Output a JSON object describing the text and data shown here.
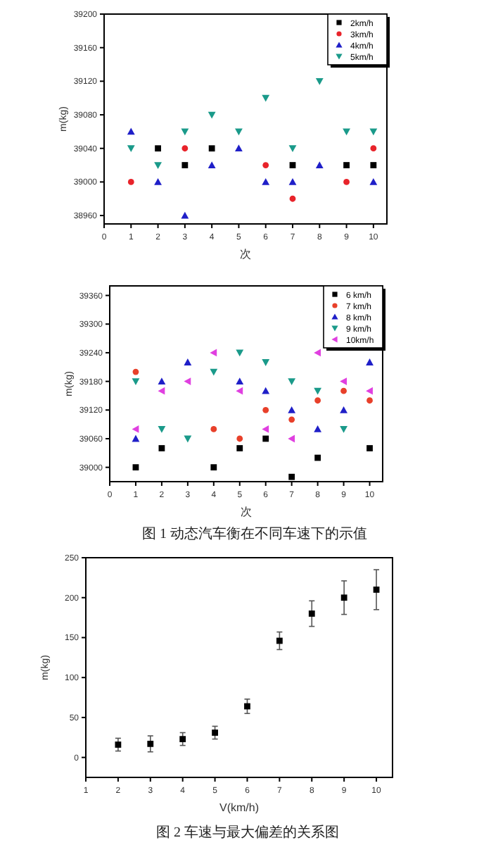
{
  "chart_data": [
    {
      "type": "scatter",
      "xlabel": "次",
      "ylabel": "m(kg)",
      "x": [
        1,
        2,
        3,
        4,
        5,
        6,
        7,
        8,
        9,
        10
      ],
      "xlim": [
        0,
        10.5
      ],
      "xticks": [
        0,
        1,
        2,
        3,
        4,
        5,
        6,
        7,
        8,
        9,
        10
      ],
      "ylim": [
        38950,
        39200
      ],
      "yticks": [
        38960,
        39000,
        39040,
        39080,
        39120,
        39160,
        39200
      ],
      "legend": "top right",
      "series": [
        {
          "name": "2km/h",
          "color": "#000000",
          "marker": "square",
          "values": [
            null,
            39040,
            39020,
            39040,
            null,
            null,
            39020,
            null,
            39020,
            39020
          ]
        },
        {
          "name": "3km/h",
          "color": "#e8232a",
          "marker": "circle",
          "values": [
            39000,
            null,
            39040,
            null,
            null,
            39020,
            38980,
            null,
            39000,
            39040
          ]
        },
        {
          "name": "4km/h",
          "color": "#1f1fc8",
          "marker": "triangle",
          "values": [
            39060,
            39000,
            38960,
            39020,
            39040,
            39000,
            39000,
            39020,
            null,
            39000
          ]
        },
        {
          "name": "5km/h",
          "color": "#1a9a8a",
          "marker": "triangle-down",
          "values": [
            39040,
            39020,
            39060,
            39080,
            39060,
            39100,
            39040,
            39120,
            39060,
            39060
          ]
        }
      ]
    },
    {
      "type": "scatter",
      "xlabel": "次",
      "ylabel": "m(kg)",
      "x": [
        1,
        2,
        3,
        4,
        5,
        6,
        7,
        8,
        9,
        10
      ],
      "xlim": [
        0,
        10.5
      ],
      "xticks": [
        0,
        1,
        2,
        3,
        4,
        5,
        6,
        7,
        8,
        9,
        10
      ],
      "ylim": [
        38970,
        39380
      ],
      "yticks": [
        39000,
        39060,
        39120,
        39180,
        39240,
        39300,
        39360
      ],
      "legend": "top right",
      "annotations": [
        "图 1   动态汽车衡在不同车速下的示值"
      ],
      "series": [
        {
          "name": "6 km/h",
          "color": "#000000",
          "marker": "square",
          "values": [
            39000,
            39040,
            null,
            39000,
            39040,
            39060,
            38980,
            39020,
            null,
            39040
          ]
        },
        {
          "name": "7 km/h",
          "color": "#e8402a",
          "marker": "circle",
          "values": [
            39200,
            null,
            null,
            39080,
            39060,
            39120,
            39100,
            39140,
            39160,
            39140
          ]
        },
        {
          "name": "8 km/h",
          "color": "#1f1fc8",
          "marker": "triangle",
          "values": [
            39060,
            39180,
            39220,
            null,
            39180,
            39160,
            39120,
            39080,
            39120,
            39220
          ]
        },
        {
          "name": "9 km/h",
          "color": "#1a9a8a",
          "marker": "triangle-down",
          "values": [
            39180,
            39080,
            39060,
            39200,
            39240,
            39220,
            39180,
            39160,
            39080,
            null
          ]
        },
        {
          "name": "10km/h",
          "color": "#e040e0",
          "marker": "triangle-left",
          "values": [
            39080,
            39160,
            39180,
            39240,
            39160,
            39080,
            39060,
            39240,
            39180,
            39160
          ]
        }
      ]
    },
    {
      "type": "scatter",
      "xlabel": "V(km/h)",
      "ylabel": "m(kg)",
      "x": [
        2,
        3,
        4,
        5,
        6,
        7,
        8,
        9,
        10
      ],
      "xlim": [
        1,
        10.5
      ],
      "xticks": [
        1,
        2,
        3,
        4,
        5,
        6,
        7,
        8,
        9,
        10
      ],
      "ylim": [
        -25,
        250
      ],
      "yticks": [
        0,
        50,
        100,
        150,
        200,
        250
      ],
      "marker": "square",
      "annotations": [
        "图 2   车速与最大偏差的关系图"
      ],
      "series": [
        {
          "color": "#000000",
          "values": [
            16,
            17,
            23,
            31,
            64,
            146,
            180,
            200,
            210
          ],
          "errors": [
            8,
            10,
            8,
            8,
            9,
            11,
            16,
            21,
            25
          ]
        }
      ]
    }
  ]
}
